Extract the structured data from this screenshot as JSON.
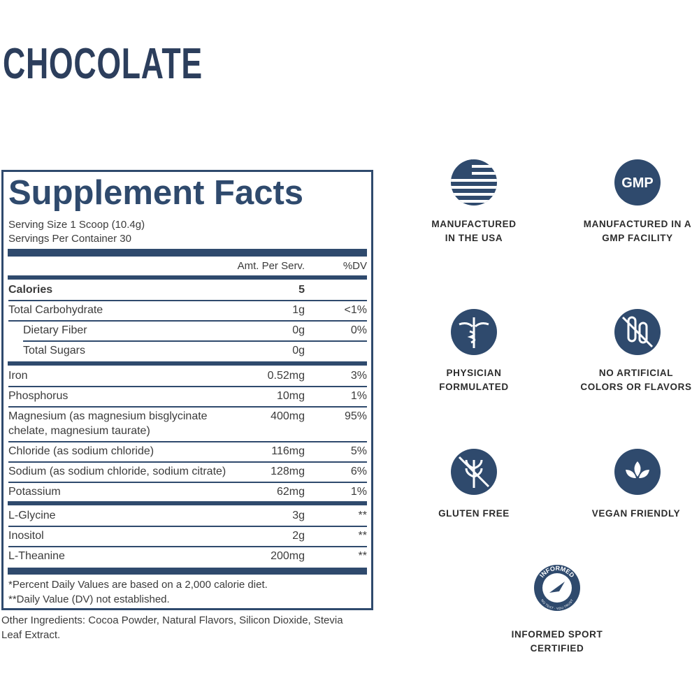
{
  "header": {
    "title": "CHOCOLATE"
  },
  "facts": {
    "title": "Supplement Facts",
    "serving_size": "Serving Size 1 Scoop (10.4g)",
    "servings_per_container": "Servings Per Container 30",
    "col_amount": "Amt. Per Serv.",
    "col_dv": "%DV",
    "sections": [
      [
        {
          "name": "Calories",
          "amount": "5",
          "bold": true
        },
        {
          "name": "Total Carbohydrate",
          "amount": "1g",
          "dv": "<1%"
        },
        {
          "name": "Dietary Fiber",
          "amount": "0g",
          "dv": "0%",
          "indent": true
        },
        {
          "name": "Total Sugars",
          "amount": "0g",
          "indent": true
        }
      ],
      [
        {
          "name": "Iron",
          "amount": "0.52mg",
          "dv": "3%"
        },
        {
          "name": "Phosphorus",
          "amount": "10mg",
          "dv": "1%"
        },
        {
          "name": "Magnesium (as magnesium bisglycinate",
          "name2": "chelate, magnesium taurate)",
          "amount": "400mg",
          "dv": "95%"
        },
        {
          "name": "Chloride (as sodium chloride)",
          "amount": "116mg",
          "dv": "5%"
        },
        {
          "name": "Sodium (as sodium chloride, sodium citrate)",
          "amount": "128mg",
          "dv": "6%"
        },
        {
          "name": "Potassium",
          "amount": "62mg",
          "dv": "1%"
        }
      ],
      [
        {
          "name": "L-Glycine",
          "amount": "3g",
          "dv": "**"
        },
        {
          "name": "Inositol",
          "amount": "2g",
          "dv": "**"
        },
        {
          "name": "L-Theanine",
          "amount": "200mg",
          "dv": "**"
        }
      ]
    ],
    "footnote1": "*Percent Daily Values are based on a 2,000 calorie diet.",
    "footnote2": "**Daily Value (DV) not established.",
    "other_ingredients1": "Other Ingredients: Cocoa Powder, Natural Flavors, Silicon Dioxide, Stevia",
    "other_ingredients2": "Leaf Extract."
  },
  "badges": [
    {
      "line1": "MANUFACTURED",
      "line2": "IN THE USA"
    },
    {
      "icon_text": "GMP",
      "line1": "MANUFACTURED IN A",
      "line2": "GMP FACILITY"
    },
    {
      "line1": "PHYSICIAN",
      "line2": "FORMULATED"
    },
    {
      "line1": "NO ARTIFICIAL",
      "line2": "COLORS OR FLAVORS"
    },
    {
      "line1": "GLUTEN FREE"
    },
    {
      "line1": "VEGAN FRIENDLY"
    },
    {
      "icon_text": "INFORMED",
      "icon_subtext": "NO TEST · YOU TRUST",
      "line1": "INFORMED SPORT",
      "line2": "CERTIFIED"
    }
  ]
}
